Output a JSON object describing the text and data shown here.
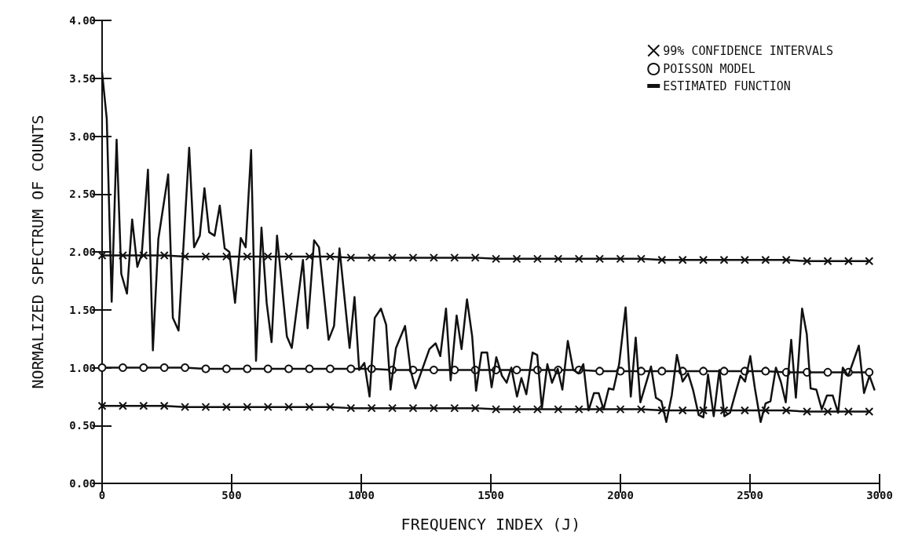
{
  "chart_data": {
    "type": "line",
    "xlabel": "FREQUENCY INDEX (J)",
    "ylabel": "NORMALIZED SPECTRUM OF COUNTS",
    "xlim": [
      0,
      3000
    ],
    "xticks": [
      0,
      500,
      1000,
      1500,
      2000,
      2500,
      3000
    ],
    "ylim": [
      0,
      4
    ],
    "yticks": [
      {
        "value": 0,
        "label": "0.00"
      },
      {
        "value": 0.5,
        "label": "0.50"
      },
      {
        "value": 1,
        "label": "1.00"
      },
      {
        "value": 1.5,
        "label": "1.50"
      },
      {
        "value": 2,
        "label": "2.00"
      },
      {
        "value": 2.5,
        "label": "2.50"
      },
      {
        "value": 3,
        "label": "3.00"
      },
      {
        "value": 3.5,
        "label": "3.50"
      },
      {
        "value": 4,
        "label": "4.00"
      }
    ],
    "grid": false,
    "legend": "top right",
    "line_style": "solid",
    "series": [
      {
        "name": "99% CONFIDENCE INTERVALS",
        "color": "#111111",
        "marker": "cross",
        "x": [
          0,
          80,
          160,
          240,
          320,
          400,
          480,
          560,
          640,
          720,
          800,
          880,
          960,
          1040,
          1120,
          1200,
          1280,
          1360,
          1440,
          1520,
          1600,
          1680,
          1760,
          1840,
          1920,
          2000,
          2080,
          2160,
          2240,
          2320,
          2400,
          2480,
          2560,
          2640,
          2720,
          2800,
          2880,
          2960
        ],
        "values": [
          1.97,
          1.97,
          1.97,
          1.97,
          1.96,
          1.96,
          1.96,
          1.96,
          1.96,
          1.96,
          1.96,
          1.96,
          1.95,
          1.95,
          1.95,
          1.95,
          1.95,
          1.95,
          1.95,
          1.94,
          1.94,
          1.94,
          1.94,
          1.94,
          1.94,
          1.94,
          1.94,
          1.93,
          1.93,
          1.93,
          1.93,
          1.93,
          1.93,
          1.93,
          1.92,
          1.92,
          1.92,
          1.92
        ]
      },
      {
        "name": "POISSON MODEL",
        "color": "#111111",
        "marker": "circle",
        "x": [
          0,
          80,
          160,
          240,
          320,
          400,
          480,
          560,
          640,
          720,
          800,
          880,
          960,
          1040,
          1120,
          1200,
          1280,
          1360,
          1440,
          1520,
          1600,
          1680,
          1760,
          1840,
          1920,
          2000,
          2080,
          2160,
          2240,
          2320,
          2400,
          2480,
          2560,
          2640,
          2720,
          2800,
          2880,
          2960
        ],
        "values": [
          1.0,
          1.0,
          1.0,
          1.0,
          1.0,
          0.99,
          0.99,
          0.99,
          0.99,
          0.99,
          0.99,
          0.99,
          0.99,
          0.99,
          0.98,
          0.98,
          0.98,
          0.98,
          0.98,
          0.98,
          0.98,
          0.98,
          0.98,
          0.98,
          0.97,
          0.97,
          0.97,
          0.97,
          0.97,
          0.97,
          0.97,
          0.97,
          0.97,
          0.96,
          0.96,
          0.96,
          0.96,
          0.96
        ]
      },
      {
        "name": "ESTIMATED FUNCTION",
        "color": "#111111",
        "marker": "none",
        "x": [
          0,
          18,
          37,
          56,
          74,
          96,
          116,
          136,
          153,
          177,
          196,
          217,
          255,
          273,
          295,
          336,
          355,
          377,
          395,
          413,
          434,
          454,
          473,
          491,
          513,
          535,
          554,
          575,
          594,
          615,
          635,
          654,
          675,
          713,
          732,
          775,
          793,
          818,
          837,
          874,
          895,
          916,
          955,
          974,
          992,
          1012,
          1032,
          1052,
          1076,
          1096,
          1113,
          1134,
          1169,
          1190,
          1209,
          1263,
          1287,
          1305,
          1327,
          1345,
          1368,
          1387,
          1408,
          1428,
          1443,
          1464,
          1486,
          1503,
          1521,
          1543,
          1561,
          1579,
          1601,
          1618,
          1637,
          1661,
          1679,
          1697,
          1718,
          1736,
          1758,
          1776,
          1797,
          1818,
          1839,
          1857,
          1877,
          1898,
          1916,
          1935,
          1955,
          1973,
          1995,
          2020,
          2040,
          2059,
          2077,
          2118,
          2137,
          2158,
          2177,
          2198,
          2218,
          2240,
          2261,
          2280,
          2302,
          2320,
          2338,
          2360,
          2382,
          2401,
          2423,
          2444,
          2463,
          2481,
          2501,
          2519,
          2541,
          2560,
          2579,
          2600,
          2620,
          2638,
          2659,
          2677,
          2701,
          2719,
          2734,
          2756,
          2777,
          2797,
          2819,
          2840,
          2858,
          2879,
          2920,
          2940,
          2961,
          2980
        ],
        "values": [
          3.55,
          3.15,
          1.57,
          2.97,
          1.81,
          1.64,
          2.28,
          1.87,
          1.98,
          2.71,
          1.15,
          2.11,
          2.67,
          1.43,
          1.32,
          2.9,
          2.04,
          2.14,
          2.55,
          2.17,
          2.14,
          2.4,
          2.03,
          2.0,
          1.56,
          2.12,
          2.04,
          2.88,
          1.06,
          2.21,
          1.56,
          1.22,
          2.14,
          1.27,
          1.17,
          1.93,
          1.34,
          2.1,
          2.04,
          1.24,
          1.36,
          2.03,
          1.17,
          1.61,
          0.98,
          1.04,
          0.75,
          1.43,
          1.51,
          1.37,
          0.81,
          1.17,
          1.36,
          0.98,
          0.82,
          1.16,
          1.21,
          1.1,
          1.51,
          0.89,
          1.45,
          1.16,
          1.59,
          1.27,
          0.8,
          1.13,
          1.13,
          0.83,
          1.09,
          0.93,
          0.87,
          1.0,
          0.75,
          0.91,
          0.77,
          1.13,
          1.11,
          0.65,
          1.03,
          0.87,
          0.99,
          0.81,
          1.23,
          0.98,
          0.95,
          1.03,
          0.63,
          0.78,
          0.78,
          0.64,
          0.82,
          0.81,
          1.03,
          1.52,
          0.75,
          1.26,
          0.7,
          1.01,
          0.74,
          0.71,
          0.53,
          0.76,
          1.11,
          0.88,
          0.95,
          0.81,
          0.59,
          0.57,
          0.94,
          0.58,
          0.98,
          0.58,
          0.61,
          0.78,
          0.93,
          0.88,
          1.1,
          0.82,
          0.53,
          0.69,
          0.71,
          1.0,
          0.87,
          0.7,
          1.24,
          0.74,
          1.51,
          1.29,
          0.82,
          0.81,
          0.64,
          0.76,
          0.76,
          0.61,
          1.0,
          0.93,
          1.19,
          0.78,
          0.93,
          0.81
        ]
      },
      {
        "color": "#111111",
        "marker": "cross",
        "x": [
          0,
          80,
          160,
          240,
          320,
          400,
          480,
          560,
          640,
          720,
          800,
          880,
          960,
          1040,
          1120,
          1200,
          1280,
          1360,
          1440,
          1520,
          1600,
          1680,
          1760,
          1840,
          1920,
          2000,
          2080,
          2160,
          2240,
          2320,
          2400,
          2480,
          2560,
          2640,
          2720,
          2800,
          2880,
          2960
        ],
        "values": [
          0.67,
          0.67,
          0.67,
          0.67,
          0.66,
          0.66,
          0.66,
          0.66,
          0.66,
          0.66,
          0.66,
          0.66,
          0.65,
          0.65,
          0.65,
          0.65,
          0.65,
          0.65,
          0.65,
          0.64,
          0.64,
          0.64,
          0.64,
          0.64,
          0.64,
          0.64,
          0.64,
          0.63,
          0.63,
          0.63,
          0.63,
          0.63,
          0.63,
          0.63,
          0.62,
          0.62,
          0.62,
          0.62
        ]
      }
    ]
  }
}
